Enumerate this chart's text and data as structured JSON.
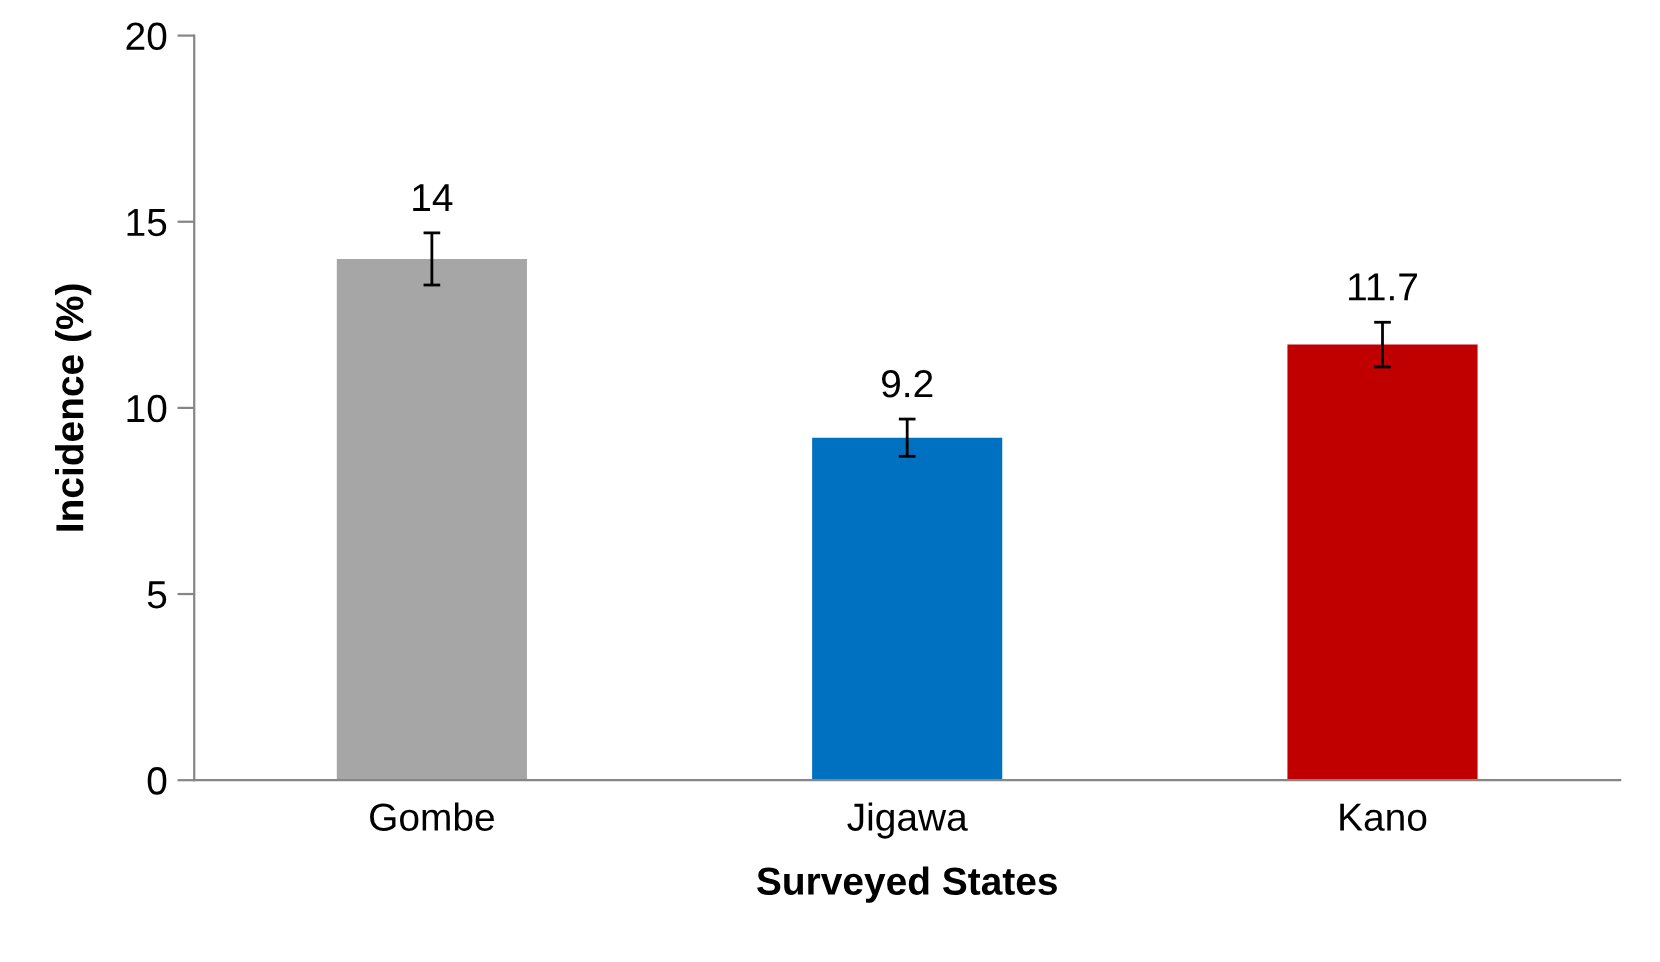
{
  "chart_data": {
    "type": "bar",
    "xlabel": "Surveyed States",
    "ylabel": "Incidence (%)",
    "categories": [
      "Gombe",
      "Jigawa",
      "Kano"
    ],
    "values": [
      14,
      9.2,
      11.7
    ],
    "colors": [
      "#a6a6a6",
      "#0070c0",
      "#c00000"
    ],
    "errors": [
      0.7,
      0.5,
      0.6
    ],
    "data_labels": true,
    "ylim": [
      0,
      20
    ],
    "yticks": [
      0,
      5,
      10,
      15,
      20
    ],
    "grid": false,
    "legend": false
  }
}
